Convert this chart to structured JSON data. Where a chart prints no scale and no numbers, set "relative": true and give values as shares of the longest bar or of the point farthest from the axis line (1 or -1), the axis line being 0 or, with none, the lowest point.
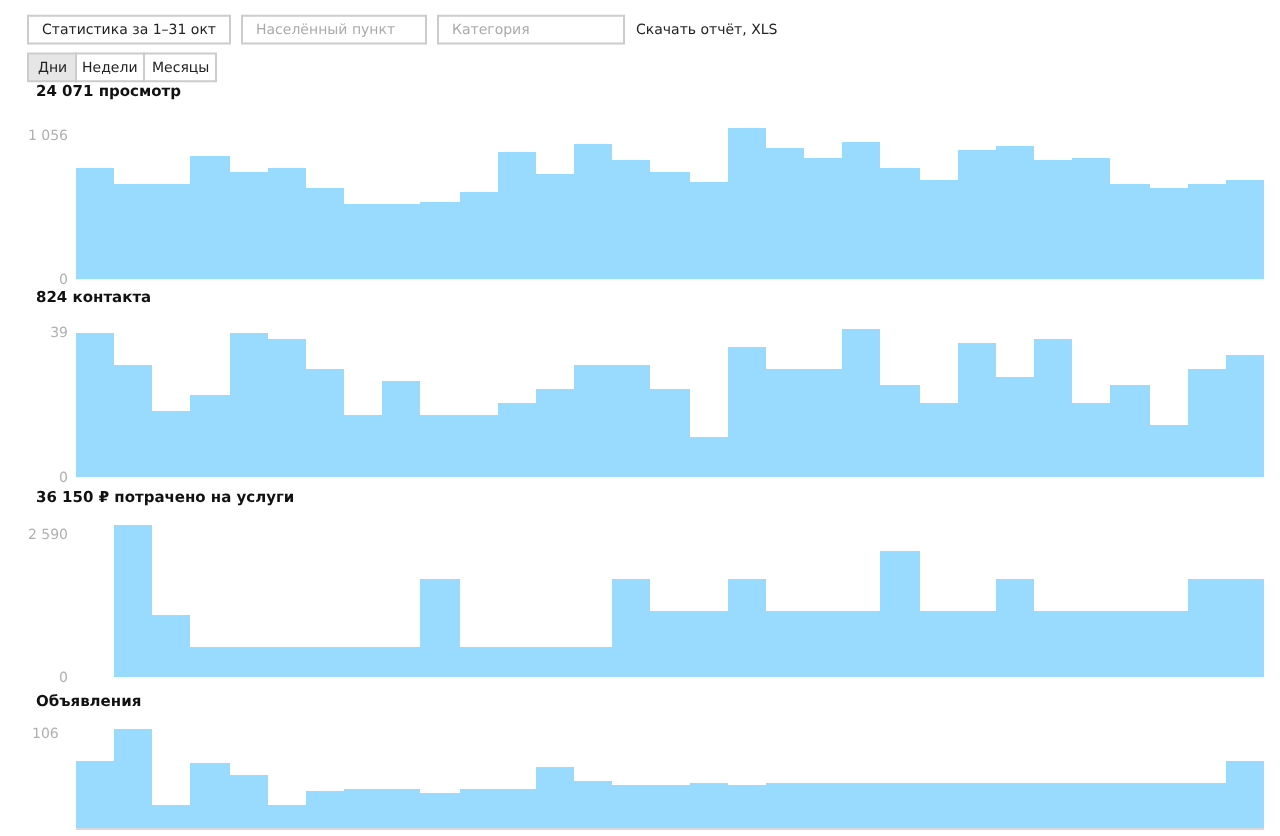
{
  "chart_data": [
    {
      "type": "bar",
      "title": "24 071 просмотр",
      "annotations": [
        "Статистика за 1–31 окт",
        "Населённый пункт",
        "Категория",
        "Скачать отчёт, XLS",
        "Дни",
        "Недели",
        "Месяцы"
      ],
      "categories": [
        null,
        null,
        null,
        null,
        null,
        null,
        null,
        null,
        null,
        null,
        null,
        null,
        null,
        null,
        null,
        null,
        null,
        null,
        null,
        null,
        null,
        null,
        null,
        null,
        null,
        null,
        null,
        null,
        null,
        null,
        null
      ],
      "values": [
        820,
        700,
        690,
        900,
        790,
        820,
        670,
        550,
        550,
        560,
        640,
        930,
        770,
        990,
        870,
        780,
        710,
        1110,
        960,
        890,
        1000,
        820,
        720,
        940,
        980,
        870,
        890,
        690,
        670,
        690,
        730
      ],
      "color": "#99daff",
      "ylim": [
        0,
        1120
      ],
      "yticks": [
        {
          "value": 1056,
          "label": "1 056"
        },
        0
      ],
      "tick_labels": "y"
    },
    {
      "type": "bar",
      "title": "824 контакта",
      "categories": [
        null,
        null,
        null,
        null,
        null,
        null,
        null,
        null,
        null,
        null,
        null,
        null,
        null,
        null,
        null,
        null,
        null,
        null,
        null,
        null,
        null,
        null,
        null,
        null,
        null,
        null,
        null,
        null,
        null,
        null,
        null
      ],
      "values": [
        39,
        30,
        18,
        22,
        39,
        37,
        29,
        17,
        26,
        17,
        17,
        20,
        24,
        30,
        30,
        24,
        11,
        35,
        29,
        29,
        40,
        25,
        20,
        36,
        27,
        37,
        20,
        25,
        14,
        29,
        33
      ],
      "color": "#99daff",
      "ylim": [
        0,
        41
      ],
      "yticks": [
        39,
        0
      ],
      "tick_labels": "y"
    },
    {
      "type": "bar",
      "title": "36 150 ₽ потрачено на услуги",
      "categories": [
        null,
        null,
        null,
        null,
        null,
        null,
        null,
        null,
        null,
        null,
        null,
        null,
        null,
        null,
        null,
        null,
        null,
        null,
        null,
        null,
        null,
        null,
        null,
        null,
        null,
        null,
        null,
        null,
        null,
        null,
        null
      ],
      "values": [
        0,
        2750,
        1150,
        560,
        560,
        560,
        560,
        560,
        560,
        1800,
        560,
        560,
        560,
        560,
        1800,
        1200,
        1200,
        1800,
        1200,
        1200,
        1200,
        2300,
        1200,
        1200,
        1800,
        1200,
        1200,
        1200,
        1200,
        1800,
        1800
      ],
      "color": "#99daff",
      "ylim": [
        0,
        2800
      ],
      "yticks": [
        {
          "value": 2590,
          "label": "2 590"
        },
        0
      ],
      "tick_labels": "y"
    },
    {
      "type": "bar",
      "title": "Объявления",
      "annotations": [
        "106"
      ],
      "relative": true,
      "categories": [
        null,
        null,
        null,
        null,
        null,
        null,
        null,
        null,
        null,
        null,
        null,
        null,
        null,
        null,
        null,
        null,
        null,
        null,
        null,
        null,
        null,
        null,
        null,
        null,
        null,
        null,
        null,
        null,
        null,
        null,
        null
      ],
      "values": [
        0.68,
        1,
        0.24,
        0.65,
        0.54,
        0.24,
        0.38,
        0.39,
        0.39,
        0.36,
        0.39,
        0.4,
        0.61,
        0.47,
        0.44,
        0.44,
        0.46,
        0.44,
        0.46,
        0.46,
        0.46,
        0.46,
        0.46,
        0.46,
        0.46,
        0.46,
        0.46,
        0.46,
        0.46,
        0.46,
        0.68
      ],
      "color": "#99daff",
      "tick_labels": false
    }
  ]
}
